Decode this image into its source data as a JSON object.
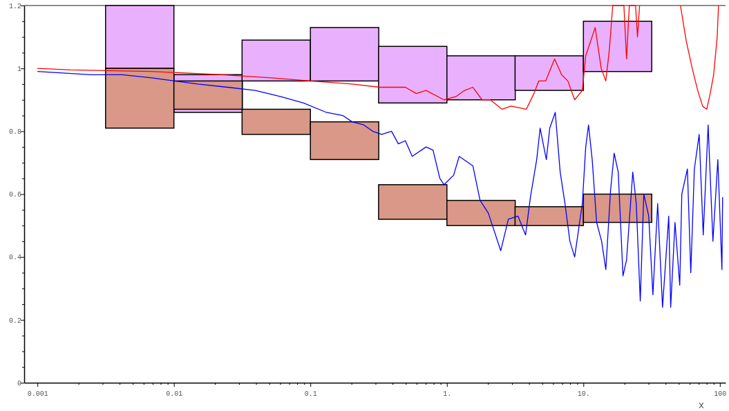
{
  "chart_data": {
    "type": "line",
    "xlabel": "x",
    "log": "x",
    "grid": false,
    "xlim": [
      0.0008,
      110
    ],
    "xticks": [
      {
        "value": 0.001,
        "label": "0.001"
      },
      {
        "value": 0.002,
        "label": null
      },
      {
        "value": 0.003,
        "label": null
      },
      {
        "value": 0.004,
        "label": null
      },
      {
        "value": 0.005,
        "label": null
      },
      {
        "value": 0.006,
        "label": null
      },
      {
        "value": 0.007,
        "label": null
      },
      {
        "value": 0.008,
        "label": null
      },
      {
        "value": 0.009,
        "label": null
      },
      {
        "value": 0.01,
        "label": "0.01"
      },
      {
        "value": 0.02,
        "label": null
      },
      {
        "value": 0.03,
        "label": null
      },
      {
        "value": 0.04,
        "label": null
      },
      {
        "value": 0.05,
        "label": null
      },
      {
        "value": 0.06,
        "label": null
      },
      {
        "value": 0.07,
        "label": null
      },
      {
        "value": 0.08,
        "label": null
      },
      {
        "value": 0.09,
        "label": null
      },
      {
        "value": 0.1,
        "label": "0.1"
      },
      {
        "value": 0.2,
        "label": null
      },
      {
        "value": 0.3,
        "label": null
      },
      {
        "value": 0.4,
        "label": null
      },
      {
        "value": 0.5,
        "label": null
      },
      {
        "value": 0.6,
        "label": null
      },
      {
        "value": 0.7,
        "label": null
      },
      {
        "value": 0.8,
        "label": null
      },
      {
        "value": 0.9,
        "label": null
      },
      {
        "value": 1,
        "label": "1."
      },
      {
        "value": 2,
        "label": null
      },
      {
        "value": 3,
        "label": null
      },
      {
        "value": 4,
        "label": null
      },
      {
        "value": 5,
        "label": null
      },
      {
        "value": 6,
        "label": null
      },
      {
        "value": 7,
        "label": null
      },
      {
        "value": 8,
        "label": null
      },
      {
        "value": 9,
        "label": null
      },
      {
        "value": 10,
        "label": "10."
      },
      {
        "value": 20,
        "label": null
      },
      {
        "value": 30,
        "label": null
      },
      {
        "value": 40,
        "label": null
      },
      {
        "value": 50,
        "label": null
      },
      {
        "value": 60,
        "label": null
      },
      {
        "value": 70,
        "label": null
      },
      {
        "value": 80,
        "label": null
      },
      {
        "value": 90,
        "label": null
      },
      {
        "value": 100,
        "label": "100"
      }
    ],
    "ylim": [
      0,
      1.2
    ],
    "yticks": [
      0,
      {
        "value": 0.05,
        "label": null
      },
      {
        "value": 0.1,
        "label": null
      },
      {
        "value": 0.15,
        "label": null
      },
      0.2,
      {
        "value": 0.25,
        "label": null
      },
      {
        "value": 0.3,
        "label": null
      },
      {
        "value": 0.35,
        "label": null
      },
      0.4,
      {
        "value": 0.45,
        "label": null
      },
      {
        "value": 0.5,
        "label": null
      },
      {
        "value": 0.55,
        "label": null
      },
      0.6,
      {
        "value": 0.65,
        "label": null
      },
      {
        "value": 0.7,
        "label": null
      },
      {
        "value": 0.75,
        "label": null
      },
      0.8,
      {
        "value": 0.85,
        "label": null
      },
      {
        "value": 0.9,
        "label": null
      },
      {
        "value": 0.95,
        "label": null
      },
      1,
      {
        "value": 1.05,
        "label": null
      },
      {
        "value": 1.1,
        "label": null
      },
      {
        "value": 1.15,
        "label": null
      },
      1.2
    ],
    "series": [
      {
        "type": "bar",
        "color": "#e9b0fd",
        "x": [
          0.00562,
          0.0178,
          0.0562,
          0.178,
          0.562,
          1.78,
          5.62,
          17.8
        ],
        "base": [
          1.0,
          0.86,
          0.96,
          0.96,
          0.89,
          0.9,
          0.93,
          0.99
        ],
        "values": [
          0.2,
          0.12,
          0.13,
          0.17,
          0.18,
          0.14,
          0.11,
          0.16
        ]
      },
      {
        "type": "bar",
        "color": "#d99888",
        "x": [
          0.00562,
          0.0178,
          0.0562,
          0.178,
          0.562,
          1.78,
          5.62,
          17.8
        ],
        "base": [
          0.81,
          0.87,
          0.79,
          0.71,
          0.52,
          0.5,
          0.5,
          0.51
        ],
        "values": [
          0.19,
          0.09,
          0.08,
          0.12,
          0.11,
          0.08,
          0.06,
          0.09
        ]
      },
      {
        "color": "#ff0000",
        "x": [
          0.001,
          0.00175,
          0.00686,
          0.0225,
          0.0515,
          0.1,
          0.202,
          0.322,
          0.421,
          0.496,
          0.597,
          0.703,
          0.953,
          1.16,
          1.35,
          1.55,
          1.81,
          2.08,
          2.54,
          2.95,
          3.82,
          4.34,
          4.71,
          5.29,
          6.15,
          6.92,
          7.69,
          8.63,
          9.82,
          10.4,
          12.2,
          13.5,
          14.6,
          15.5,
          16.4,
          18.0,
          19.8,
          20.7,
          21.7,
          24.1,
          24.9,
          25.8
        ],
        "values": [
          1.0,
          0.995,
          0.99,
          0.98,
          0.97,
          0.96,
          0.95,
          0.94,
          0.94,
          0.94,
          0.92,
          0.93,
          0.9,
          0.91,
          0.93,
          0.94,
          0.9,
          0.9,
          0.87,
          0.88,
          0.87,
          0.92,
          0.96,
          0.96,
          1.03,
          0.98,
          0.96,
          0.9,
          0.93,
          1.04,
          1.13,
          1.0,
          0.96,
          1.06,
          1.2,
          1.2,
          1.2,
          1.03,
          1.2,
          1.2,
          1.1,
          1.2
        ]
      },
      {
        "color": "#ff0000",
        "x": [
          51.4,
          56.5,
          62.7,
          68.8,
          74.7,
          80.1,
          84.9,
          90.0,
          95.5,
          97.7
        ],
        "values": [
          1.2,
          1.09,
          1.0,
          0.93,
          0.88,
          0.87,
          0.92,
          0.98,
          1.1,
          1.2
        ]
      },
      {
        "color": "#0000ff",
        "x": [
          0.001,
          0.00248,
          0.0042,
          0.00686,
          0.0101,
          0.015,
          0.0247,
          0.0394,
          0.0607,
          0.0891,
          0.131,
          0.173,
          0.202,
          0.246,
          0.286,
          0.333,
          0.393,
          0.441,
          0.496,
          0.557,
          0.703,
          0.791,
          0.888,
          0.953,
          1.12,
          1.23,
          1.55,
          1.75,
          2.01,
          2.48,
          2.82,
          3.32,
          3.77,
          4.09,
          4.55,
          4.82,
          5.35,
          5.67,
          6.22,
          6.76,
          7.33,
          7.96,
          8.63,
          9.82,
          10.4,
          10.9,
          11.6,
          12.5,
          13.6,
          14.6,
          15.8,
          16.8,
          18.0,
          19.5,
          20.7,
          23.0,
          24.4,
          26.1,
          27.7,
          30.1,
          32.3,
          35.0,
          38.0,
          42.2,
          43.6,
          46.9,
          50.8,
          52.6,
          57.8,
          61.2,
          65.0,
          70.5,
          75.5,
          82.0,
          88.9,
          96.6,
          103.5,
          104.7
        ],
        "values": [
          0.99,
          0.98,
          0.98,
          0.97,
          0.96,
          0.95,
          0.94,
          0.93,
          0.91,
          0.89,
          0.86,
          0.85,
          0.83,
          0.82,
          0.8,
          0.79,
          0.8,
          0.76,
          0.77,
          0.72,
          0.75,
          0.74,
          0.65,
          0.63,
          0.66,
          0.72,
          0.69,
          0.58,
          0.54,
          0.42,
          0.52,
          0.53,
          0.47,
          0.59,
          0.71,
          0.81,
          0.71,
          0.81,
          0.86,
          0.67,
          0.57,
          0.45,
          0.4,
          0.57,
          0.75,
          0.82,
          0.71,
          0.51,
          0.45,
          0.36,
          0.61,
          0.73,
          0.67,
          0.34,
          0.39,
          0.67,
          0.57,
          0.26,
          0.6,
          0.53,
          0.28,
          0.57,
          0.24,
          0.53,
          0.24,
          0.51,
          0.31,
          0.6,
          0.68,
          0.35,
          0.68,
          0.79,
          0.47,
          0.82,
          0.45,
          0.71,
          0.36,
          0.59
        ]
      }
    ]
  }
}
